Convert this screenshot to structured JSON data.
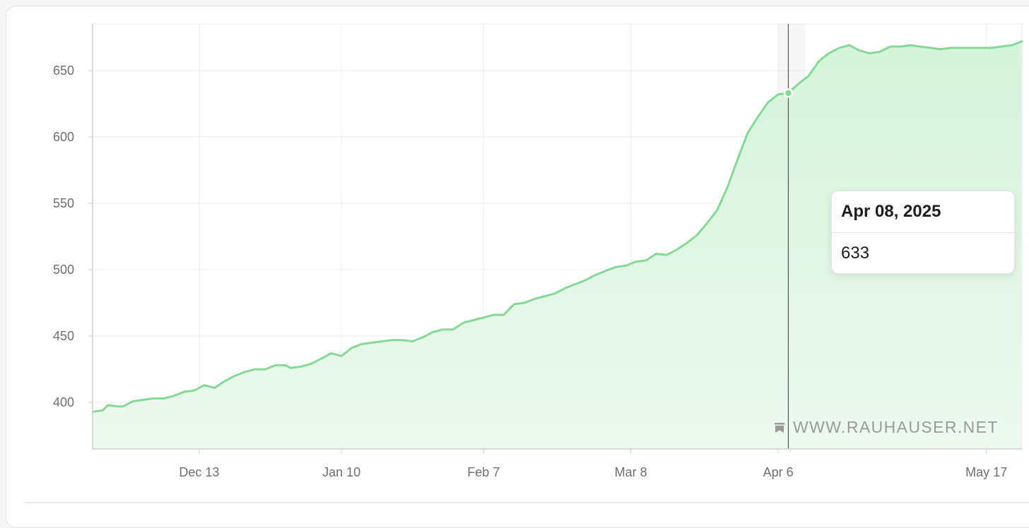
{
  "colors": {
    "line": "#86d995",
    "fill_top": "#d5f3db",
    "fill_bottom": "#ecf9ef",
    "grid": "#ececec",
    "axis": "#cfcfcf",
    "crosshair": "#555555"
  },
  "tooltip": {
    "date": "Apr 08, 2025",
    "value": "633"
  },
  "watermark": {
    "text": "WWW.RAUHAUSER.NET",
    "icon": "bookmark-icon"
  },
  "chart_data": {
    "type": "area",
    "title": "",
    "xlabel": "",
    "ylabel": "",
    "ylim": [
      365,
      685
    ],
    "xlim": [
      "2024-11-22",
      "2025-05-24"
    ],
    "y_ticks": [
      400,
      450,
      500,
      550,
      600,
      650
    ],
    "x_ticks": [
      {
        "date": "2024-12-13",
        "label": "Dec 13"
      },
      {
        "date": "2025-01-10",
        "label": "Jan 10"
      },
      {
        "date": "2025-02-07",
        "label": "Feb 7"
      },
      {
        "date": "2025-03-08",
        "label": "Mar 8"
      },
      {
        "date": "2025-04-06",
        "label": "Apr 6"
      },
      {
        "date": "2025-05-17",
        "label": "May 17"
      }
    ],
    "grid": true,
    "highlight": {
      "date": "2025-04-08",
      "value": 633
    },
    "series": [
      {
        "points": [
          [
            "2024-11-22",
            393
          ],
          [
            "2024-11-24",
            394
          ],
          [
            "2024-11-25",
            398
          ],
          [
            "2024-11-27",
            397
          ],
          [
            "2024-11-28",
            397
          ],
          [
            "2024-11-30",
            401
          ],
          [
            "2024-12-02",
            402
          ],
          [
            "2024-12-04",
            403
          ],
          [
            "2024-12-06",
            403
          ],
          [
            "2024-12-08",
            405
          ],
          [
            "2024-12-10",
            408
          ],
          [
            "2024-12-12",
            409
          ],
          [
            "2024-12-14",
            413
          ],
          [
            "2024-12-16",
            411
          ],
          [
            "2024-12-18",
            416
          ],
          [
            "2024-12-20",
            420
          ],
          [
            "2024-12-22",
            423
          ],
          [
            "2024-12-24",
            425
          ],
          [
            "2024-12-26",
            425
          ],
          [
            "2024-12-28",
            428
          ],
          [
            "2024-12-30",
            428
          ],
          [
            "2024-12-31",
            426
          ],
          [
            "2025-01-02",
            427
          ],
          [
            "2025-01-04",
            429
          ],
          [
            "2025-01-06",
            433
          ],
          [
            "2025-01-08",
            437
          ],
          [
            "2025-01-10",
            435
          ],
          [
            "2025-01-12",
            441
          ],
          [
            "2025-01-14",
            444
          ],
          [
            "2025-01-16",
            445
          ],
          [
            "2025-01-18",
            446
          ],
          [
            "2025-01-20",
            447
          ],
          [
            "2025-01-22",
            447
          ],
          [
            "2025-01-24",
            446
          ],
          [
            "2025-01-26",
            449
          ],
          [
            "2025-01-28",
            453
          ],
          [
            "2025-01-30",
            455
          ],
          [
            "2025-02-01",
            455
          ],
          [
            "2025-02-03",
            460
          ],
          [
            "2025-02-05",
            462
          ],
          [
            "2025-02-07",
            464
          ],
          [
            "2025-02-09",
            466
          ],
          [
            "2025-02-11",
            466
          ],
          [
            "2025-02-13",
            474
          ],
          [
            "2025-02-15",
            475
          ],
          [
            "2025-02-17",
            478
          ],
          [
            "2025-02-19",
            480
          ],
          [
            "2025-02-21",
            482
          ],
          [
            "2025-02-23",
            486
          ],
          [
            "2025-02-25",
            489
          ],
          [
            "2025-02-27",
            492
          ],
          [
            "2025-03-01",
            496
          ],
          [
            "2025-03-03",
            499
          ],
          [
            "2025-03-05",
            502
          ],
          [
            "2025-03-07",
            503
          ],
          [
            "2025-03-09",
            506
          ],
          [
            "2025-03-11",
            507
          ],
          [
            "2025-03-13",
            512
          ],
          [
            "2025-03-15",
            511
          ],
          [
            "2025-03-17",
            515
          ],
          [
            "2025-03-19",
            520
          ],
          [
            "2025-03-21",
            526
          ],
          [
            "2025-03-23",
            535
          ],
          [
            "2025-03-25",
            545
          ],
          [
            "2025-03-27",
            562
          ],
          [
            "2025-03-29",
            583
          ],
          [
            "2025-03-31",
            603
          ],
          [
            "2025-04-02",
            615
          ],
          [
            "2025-04-04",
            626
          ],
          [
            "2025-04-06",
            632
          ],
          [
            "2025-04-08",
            633
          ],
          [
            "2025-04-10",
            640
          ],
          [
            "2025-04-12",
            646
          ],
          [
            "2025-04-14",
            657
          ],
          [
            "2025-04-16",
            663
          ],
          [
            "2025-04-18",
            667
          ],
          [
            "2025-04-20",
            669
          ],
          [
            "2025-04-22",
            665
          ],
          [
            "2025-04-24",
            663
          ],
          [
            "2025-04-26",
            664
          ],
          [
            "2025-04-28",
            668
          ],
          [
            "2025-04-30",
            668
          ],
          [
            "2025-05-02",
            669
          ],
          [
            "2025-05-04",
            668
          ],
          [
            "2025-05-06",
            667
          ],
          [
            "2025-05-08",
            666
          ],
          [
            "2025-05-10",
            667
          ],
          [
            "2025-05-12",
            667
          ],
          [
            "2025-05-14",
            667
          ],
          [
            "2025-05-16",
            667
          ],
          [
            "2025-05-18",
            667
          ],
          [
            "2025-05-20",
            668
          ],
          [
            "2025-05-22",
            669
          ],
          [
            "2025-05-24",
            672
          ]
        ]
      }
    ]
  }
}
